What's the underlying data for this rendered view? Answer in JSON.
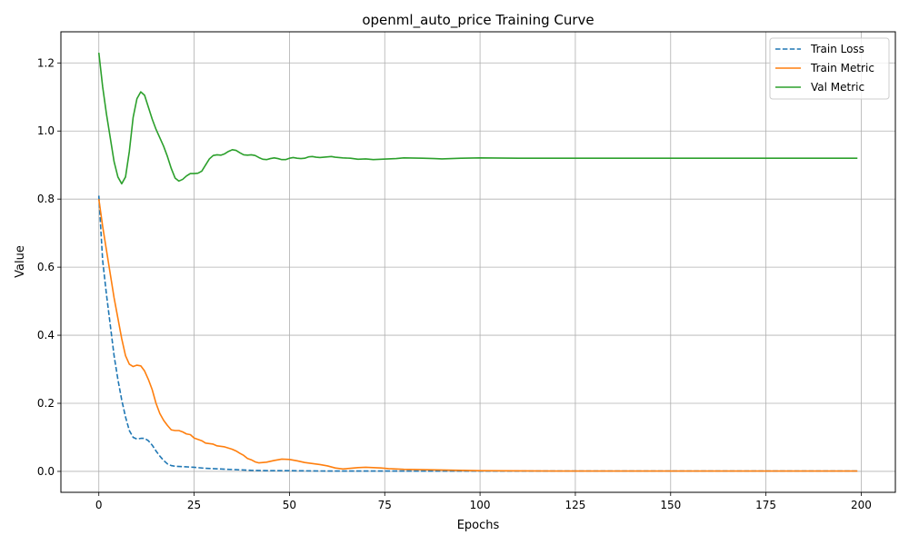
{
  "chart_data": {
    "type": "line",
    "title": "openml_auto_price Training Curve",
    "xlabel": "Epochs",
    "ylabel": "Value",
    "xlim": [
      -9.95,
      208.95
    ],
    "ylim": [
      -0.0615,
      1.2915
    ],
    "xticks": [
      0,
      25,
      50,
      75,
      100,
      125,
      150,
      175,
      200
    ],
    "yticks": [
      0.0,
      0.2,
      0.4,
      0.6,
      0.8,
      1.0,
      1.2
    ],
    "xtick_labels": [
      "0",
      "25",
      "50",
      "75",
      "100",
      "125",
      "150",
      "175",
      "200"
    ],
    "ytick_labels": [
      "0.0",
      "0.2",
      "0.4",
      "0.6",
      "0.8",
      "1.0",
      "1.2"
    ],
    "grid": true,
    "legend_position": "top-right",
    "series": [
      {
        "name": "Train Loss",
        "color": "#1f77b4",
        "dash": "dashed",
        "points": [
          [
            0,
            0.81
          ],
          [
            1,
            0.62
          ],
          [
            2,
            0.52
          ],
          [
            3,
            0.43
          ],
          [
            4,
            0.34
          ],
          [
            5,
            0.27
          ],
          [
            6,
            0.21
          ],
          [
            7,
            0.16
          ],
          [
            8,
            0.12
          ],
          [
            9,
            0.1
          ],
          [
            10,
            0.095
          ],
          [
            11,
            0.097
          ],
          [
            12,
            0.097
          ],
          [
            13,
            0.09
          ],
          [
            14,
            0.077
          ],
          [
            15,
            0.06
          ],
          [
            16,
            0.045
          ],
          [
            17,
            0.032
          ],
          [
            18,
            0.022
          ],
          [
            19,
            0.017
          ],
          [
            20,
            0.015
          ],
          [
            22,
            0.014
          ],
          [
            25,
            0.012
          ],
          [
            28,
            0.009
          ],
          [
            32,
            0.007
          ],
          [
            36,
            0.005
          ],
          [
            40,
            0.003
          ],
          [
            45,
            0.002
          ],
          [
            50,
            0.002
          ],
          [
            60,
            0.001
          ],
          [
            70,
            0.001
          ],
          [
            100,
            0.001
          ],
          [
            150,
            0.001
          ],
          [
            199,
            0.001
          ]
        ]
      },
      {
        "name": "Train Metric",
        "color": "#ff7f0e",
        "dash": "solid",
        "points": [
          [
            0,
            0.8
          ],
          [
            1,
            0.72
          ],
          [
            2,
            0.65
          ],
          [
            3,
            0.58
          ],
          [
            4,
            0.51
          ],
          [
            5,
            0.45
          ],
          [
            6,
            0.39
          ],
          [
            7,
            0.34
          ],
          [
            8,
            0.315
          ],
          [
            9,
            0.308
          ],
          [
            10,
            0.312
          ],
          [
            11,
            0.31
          ],
          [
            12,
            0.295
          ],
          [
            13,
            0.27
          ],
          [
            14,
            0.24
          ],
          [
            15,
            0.2
          ],
          [
            16,
            0.17
          ],
          [
            17,
            0.15
          ],
          [
            18,
            0.135
          ],
          [
            19,
            0.122
          ],
          [
            20,
            0.12
          ],
          [
            21,
            0.12
          ],
          [
            22,
            0.116
          ],
          [
            23,
            0.11
          ],
          [
            24,
            0.108
          ],
          [
            25,
            0.098
          ],
          [
            27,
            0.09
          ],
          [
            28,
            0.083
          ],
          [
            30,
            0.08
          ],
          [
            31,
            0.075
          ],
          [
            33,
            0.072
          ],
          [
            35,
            0.065
          ],
          [
            36,
            0.06
          ],
          [
            37,
            0.053
          ],
          [
            38,
            0.047
          ],
          [
            39,
            0.038
          ],
          [
            40,
            0.034
          ],
          [
            41,
            0.028
          ],
          [
            42,
            0.025
          ],
          [
            44,
            0.027
          ],
          [
            46,
            0.032
          ],
          [
            48,
            0.036
          ],
          [
            50,
            0.035
          ],
          [
            52,
            0.031
          ],
          [
            54,
            0.026
          ],
          [
            56,
            0.023
          ],
          [
            58,
            0.02
          ],
          [
            60,
            0.016
          ],
          [
            62,
            0.01
          ],
          [
            64,
            0.007
          ],
          [
            66,
            0.009
          ],
          [
            68,
            0.011
          ],
          [
            70,
            0.012
          ],
          [
            72,
            0.011
          ],
          [
            74,
            0.01
          ],
          [
            76,
            0.008
          ],
          [
            80,
            0.006
          ],
          [
            85,
            0.005
          ],
          [
            90,
            0.004
          ],
          [
            95,
            0.003
          ],
          [
            100,
            0.002
          ],
          [
            120,
            0.001
          ],
          [
            150,
            0.001
          ],
          [
            199,
            0.001
          ]
        ]
      },
      {
        "name": "Val Metric",
        "color": "#2ca02c",
        "dash": "solid",
        "points": [
          [
            0,
            1.23
          ],
          [
            1,
            1.13
          ],
          [
            2,
            1.05
          ],
          [
            3,
            0.98
          ],
          [
            4,
            0.91
          ],
          [
            5,
            0.865
          ],
          [
            6,
            0.845
          ],
          [
            7,
            0.865
          ],
          [
            8,
            0.94
          ],
          [
            9,
            1.04
          ],
          [
            10,
            1.095
          ],
          [
            11,
            1.115
          ],
          [
            12,
            1.105
          ],
          [
            13,
            1.07
          ],
          [
            14,
            1.035
          ],
          [
            15,
            1.005
          ],
          [
            16,
            0.98
          ],
          [
            17,
            0.955
          ],
          [
            18,
            0.925
          ],
          [
            19,
            0.89
          ],
          [
            20,
            0.862
          ],
          [
            21,
            0.853
          ],
          [
            22,
            0.858
          ],
          [
            23,
            0.868
          ],
          [
            24,
            0.875
          ],
          [
            25,
            0.875
          ],
          [
            26,
            0.876
          ],
          [
            27,
            0.882
          ],
          [
            28,
            0.9
          ],
          [
            29,
            0.918
          ],
          [
            30,
            0.928
          ],
          [
            31,
            0.93
          ],
          [
            32,
            0.929
          ],
          [
            33,
            0.933
          ],
          [
            34,
            0.94
          ],
          [
            35,
            0.945
          ],
          [
            36,
            0.943
          ],
          [
            37,
            0.936
          ],
          [
            38,
            0.93
          ],
          [
            39,
            0.929
          ],
          [
            40,
            0.93
          ],
          [
            41,
            0.928
          ],
          [
            42,
            0.922
          ],
          [
            43,
            0.917
          ],
          [
            44,
            0.916
          ],
          [
            45,
            0.919
          ],
          [
            46,
            0.921
          ],
          [
            47,
            0.919
          ],
          [
            48,
            0.916
          ],
          [
            49,
            0.916
          ],
          [
            50,
            0.92
          ],
          [
            51,
            0.922
          ],
          [
            52,
            0.92
          ],
          [
            53,
            0.919
          ],
          [
            54,
            0.92
          ],
          [
            55,
            0.924
          ],
          [
            56,
            0.925
          ],
          [
            57,
            0.923
          ],
          [
            58,
            0.922
          ],
          [
            60,
            0.924
          ],
          [
            61,
            0.925
          ],
          [
            62,
            0.923
          ],
          [
            64,
            0.921
          ],
          [
            66,
            0.92
          ],
          [
            68,
            0.917
          ],
          [
            70,
            0.918
          ],
          [
            72,
            0.916
          ],
          [
            74,
            0.917
          ],
          [
            76,
            0.918
          ],
          [
            78,
            0.919
          ],
          [
            80,
            0.921
          ],
          [
            85,
            0.92
          ],
          [
            88,
            0.919
          ],
          [
            90,
            0.918
          ],
          [
            95,
            0.92
          ],
          [
            100,
            0.921
          ],
          [
            110,
            0.92
          ],
          [
            120,
            0.92
          ],
          [
            150,
            0.92
          ],
          [
            199,
            0.92
          ]
        ]
      }
    ]
  }
}
